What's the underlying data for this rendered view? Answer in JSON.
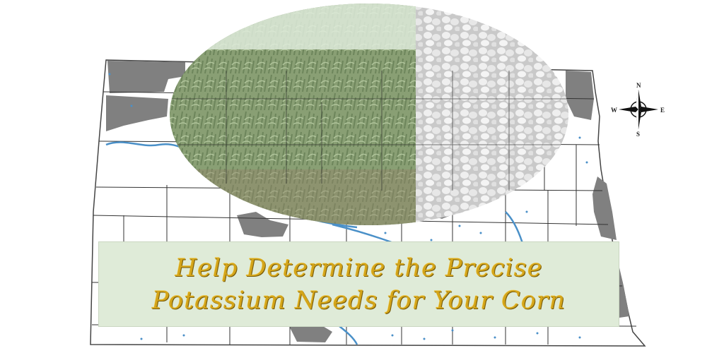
{
  "banner": {
    "line1": "Help Determine the Precise",
    "line2": "Potassium Needs for Your Corn"
  },
  "compass": {
    "north": "N",
    "south": "S",
    "east": "E",
    "west": "W"
  },
  "colors": {
    "title_text": "#d4a51a",
    "banner_bg": "#dfebd8",
    "shaded_area": "#808080",
    "water": "#4a90c8",
    "county_lines": "#333333"
  },
  "imagery": {
    "left_half": "corn-field-photo",
    "right_half": "potash-granules-photo"
  }
}
